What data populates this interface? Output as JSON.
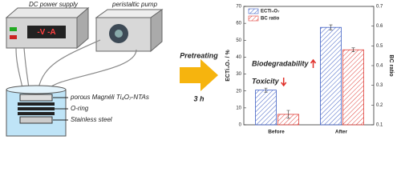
{
  "diagram": {
    "power_supply": {
      "label": "DC power supply",
      "display": "-V -A"
    },
    "pump": {
      "label": "peristaltic pump"
    },
    "cell_labels": [
      "porous Magnéli Ti₄O₇-NTAs",
      "O-ring",
      "Stainless steel"
    ],
    "process": {
      "label": "Pretreating",
      "time": "3 h"
    }
  },
  "chart_data": {
    "type": "bar",
    "categories": [
      "Before",
      "After"
    ],
    "series": [
      {
        "name": "ECTi₄O₇",
        "color": "#3f5fc4",
        "values": [
          20.5,
          57.6
        ],
        "errors": [
          1.2,
          1.5
        ]
      },
      {
        "name": "BC ratio",
        "color": "#e0403a",
        "values": [
          0.153,
          0.48
        ],
        "errors": [
          0.02,
          0.01
        ],
        "axis": "y2"
      }
    ],
    "y_label": "ECTi₄O₇ / %",
    "y2_label": "BC ratio",
    "ylim": [
      0,
      70
    ],
    "yticks": [
      0,
      10,
      20,
      30,
      40,
      50,
      60,
      70
    ],
    "y2lim": [
      0.1,
      0.7
    ],
    "y2ticks": [
      0.1,
      0.2,
      0.3,
      0.4,
      0.5,
      0.6,
      0.7
    ],
    "annotations": [
      "Biodegradability",
      "Toxicity"
    ],
    "legend": "upper left",
    "hatch": true
  }
}
